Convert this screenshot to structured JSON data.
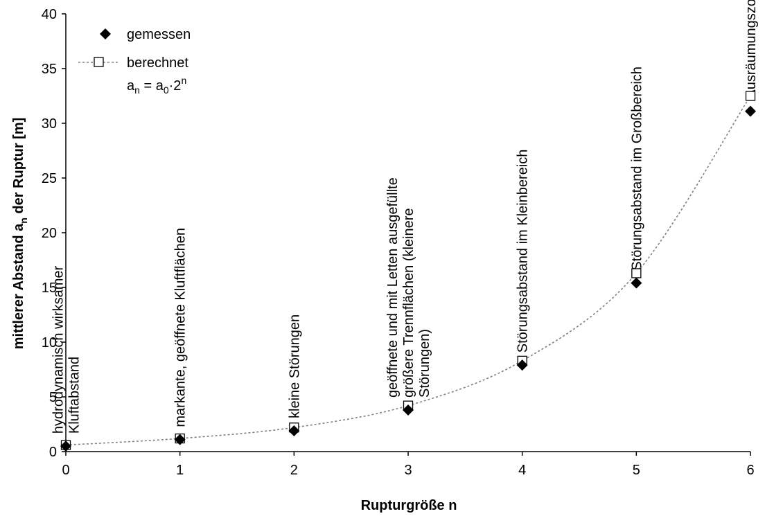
{
  "chart_data": {
    "type": "scatter",
    "title": "",
    "xlabel": "Rupturgröße n",
    "ylabel_parts": [
      "mittlerer Abstand a",
      "n",
      " der Ruptur [m]"
    ],
    "xlim": [
      0,
      6
    ],
    "ylim": [
      0,
      40
    ],
    "x_ticks": [
      0,
      1,
      2,
      3,
      4,
      5,
      6
    ],
    "y_ticks": [
      0,
      5,
      10,
      15,
      20,
      25,
      30,
      35,
      40
    ],
    "grid": false,
    "legend_position": "top-left",
    "series": [
      {
        "name": "gemessen",
        "marker": "filled-diamond",
        "color": "#000000",
        "x": [
          0,
          1,
          2,
          3,
          4,
          5,
          6
        ],
        "y": [
          0.5,
          1.1,
          1.9,
          3.8,
          7.9,
          15.4,
          31.1
        ]
      },
      {
        "name": "berechnet",
        "marker": "open-square",
        "line": "dotted",
        "color": "#7f7f7f",
        "x": [
          0,
          1,
          2,
          3,
          4,
          5,
          6
        ],
        "y": [
          0.6,
          1.2,
          2.2,
          4.2,
          8.3,
          16.3,
          32.5
        ]
      }
    ],
    "formula": {
      "a": "a",
      "sub_n": "n",
      "eq": " = a",
      "sub_0": "0",
      "dot2": "·2",
      "sup_n": "n"
    },
    "annotations": [
      {
        "x": 0,
        "lines": [
          "hydrodynamisch wirksamer",
          "Kluftabstand"
        ]
      },
      {
        "x": 1,
        "lines": [
          "markante, geöffnete Kluftflächen"
        ]
      },
      {
        "x": 2,
        "lines": [
          "kleine Störungen"
        ]
      },
      {
        "x": 3,
        "lines": [
          "geöffnete und mit Letten ausgefüllte",
          "größere Trennflächen (kleinere",
          "Störungen)"
        ]
      },
      {
        "x": 4,
        "lines": [
          "Störungsabstand im Kleinbereich"
        ]
      },
      {
        "x": 5,
        "lines": [
          "Störungsabstand im Großbereich"
        ]
      },
      {
        "x": 6,
        "lines": [
          "Ausräumungszonen"
        ]
      }
    ]
  }
}
